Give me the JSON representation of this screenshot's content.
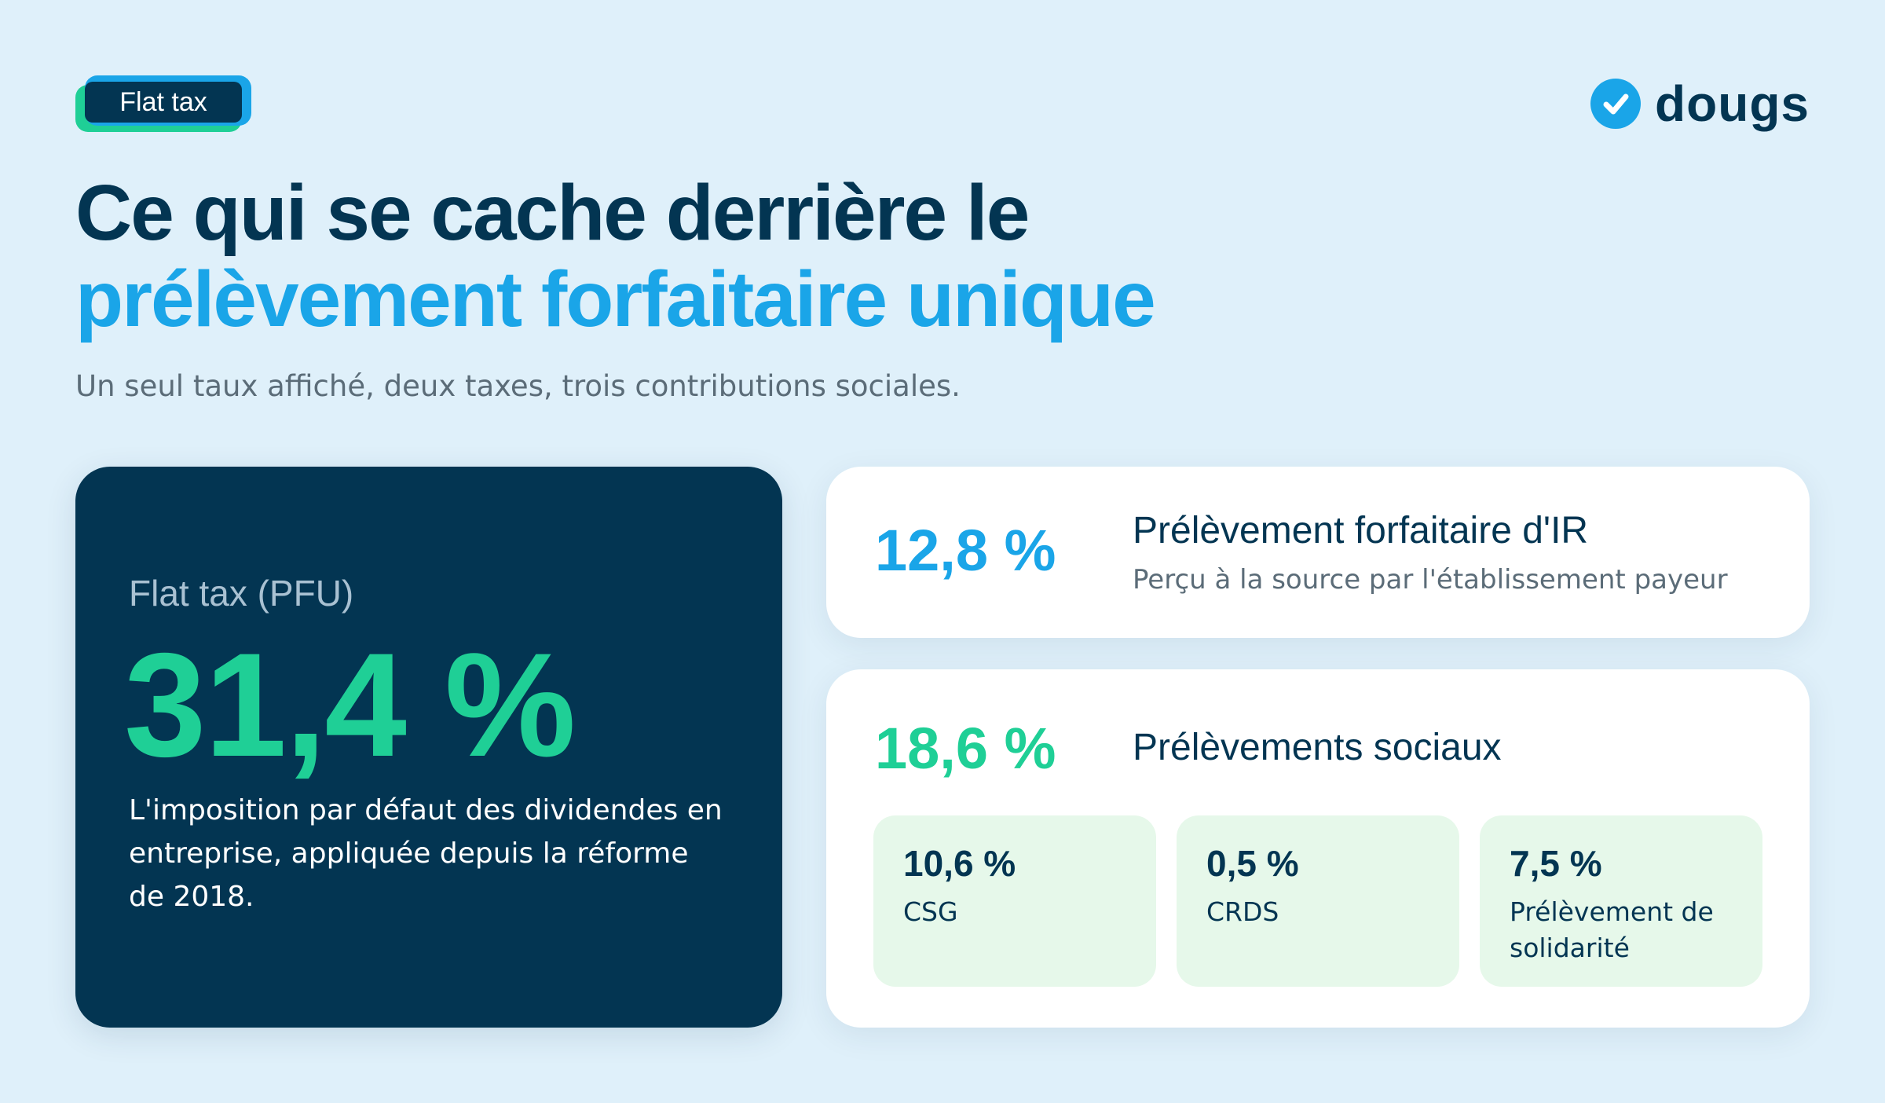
{
  "badge": {
    "label": "Flat tax"
  },
  "brand": {
    "name": "dougs",
    "icon": "check-circle-icon",
    "color": "#1aa5e8"
  },
  "header": {
    "title_line1": "Ce qui se cache derrière le",
    "title_line2": "prélèvement forfaitaire unique",
    "subtitle": "Un seul taux affiché, deux taxes, trois contributions sociales."
  },
  "main_card": {
    "label": "Flat tax (PFU)",
    "rate": "31,4 %",
    "description": "L'imposition par défaut des dividendes en entreprise, appliquée depuis la réforme de 2018."
  },
  "ir_card": {
    "rate": "12,8 %",
    "title": "Prélèvement forfaitaire d'IR",
    "subtitle": "Perçu à la source par l'établissement payeur"
  },
  "social_card": {
    "rate": "18,6 %",
    "title": "Prélèvements sociaux",
    "items": [
      {
        "rate": "10,6 %",
        "name": "CSG"
      },
      {
        "rate": "0,5 %",
        "name": "CRDS"
      },
      {
        "rate": "7,5 %",
        "name": "Prélèvement de solidarité"
      }
    ]
  },
  "colors": {
    "navy": "#033552",
    "blue": "#1aa5e8",
    "green": "#1fcf96",
    "background": "#dff0fa"
  }
}
